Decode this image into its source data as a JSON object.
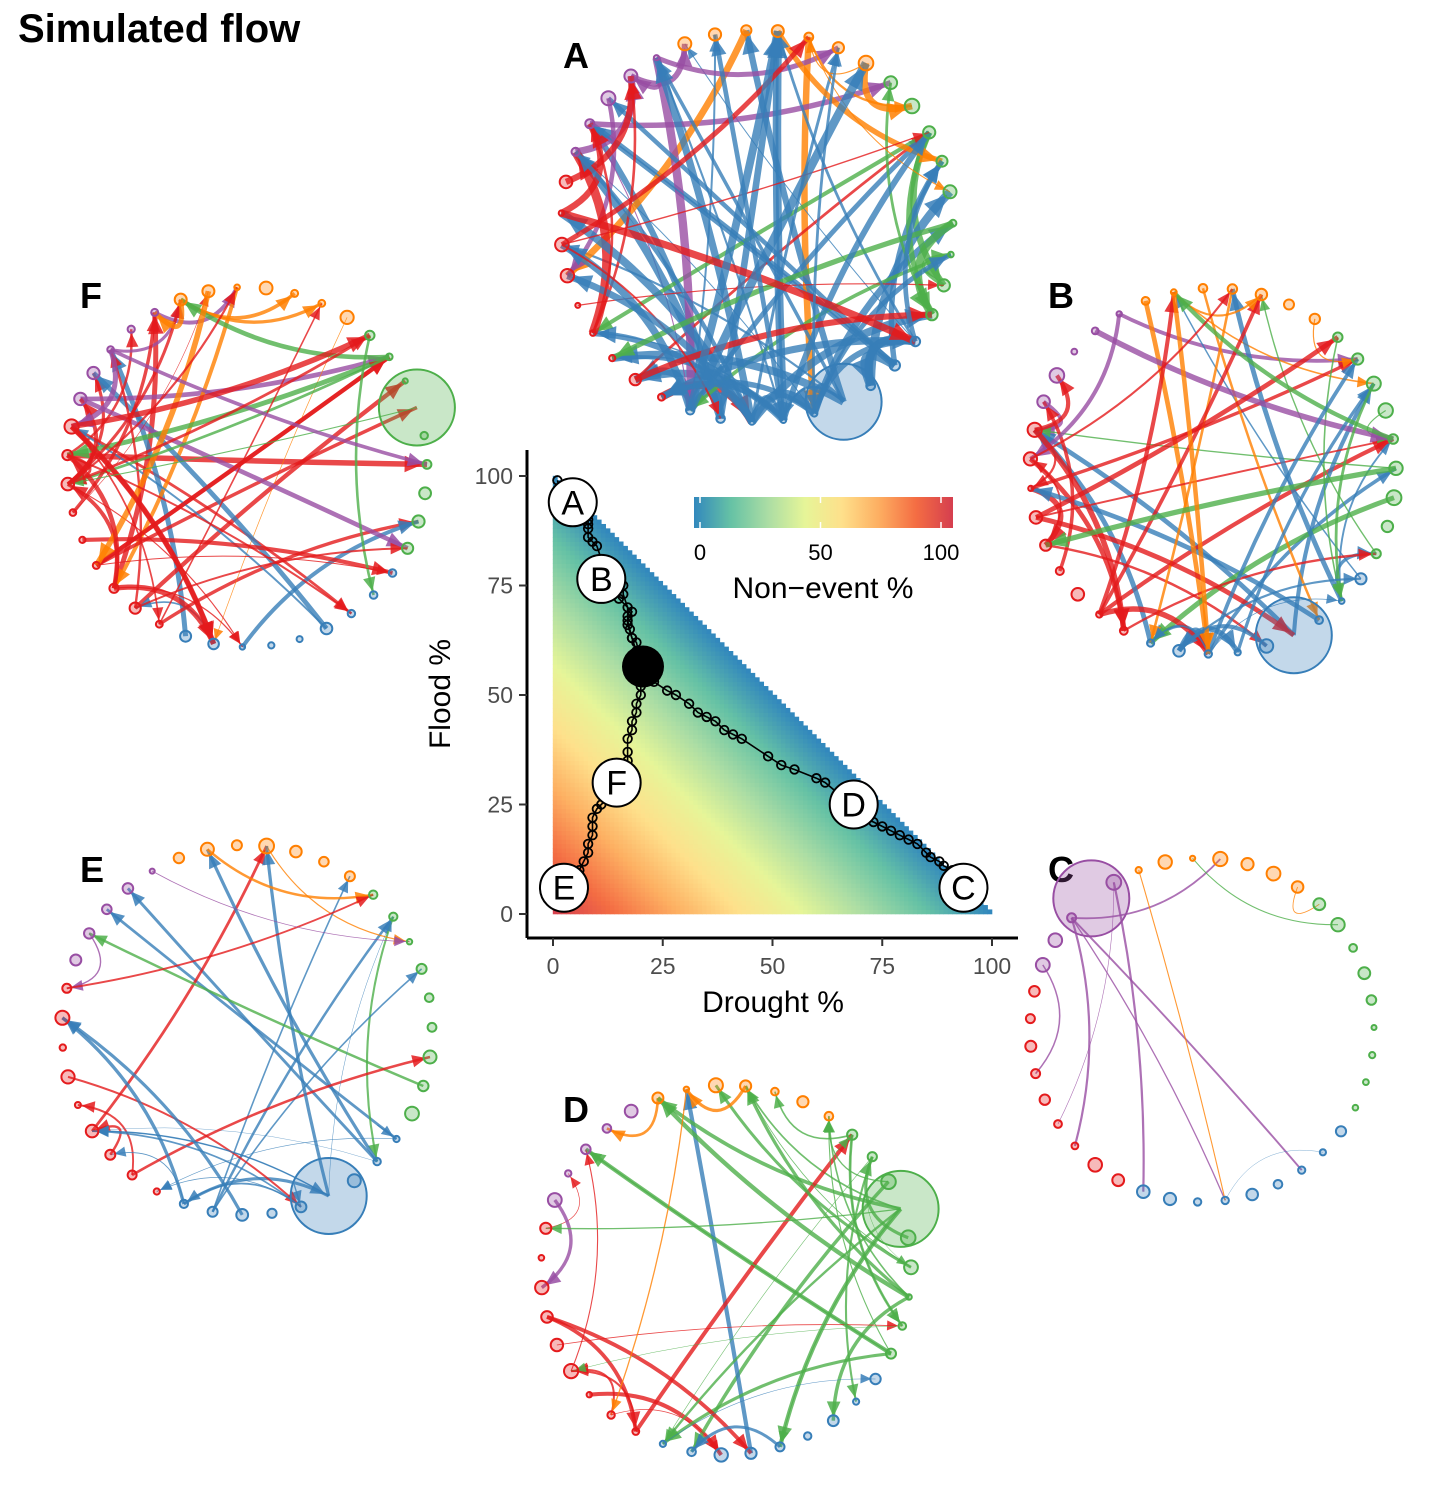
{
  "title": "Simulated flow",
  "colors": {
    "blue": "#377eb8",
    "green": "#4daf4a",
    "red": "#e41a1c",
    "orange": "#ff7f00",
    "purple": "#984ea3"
  },
  "networks": [
    {
      "id": "A",
      "label": "A",
      "node_counts": {
        "orange": 7,
        "green": 9,
        "blue": 9,
        "red": 9,
        "purple": 5
      },
      "edge_scale": 1.6,
      "dominant": "blue",
      "big_node": "blue"
    },
    {
      "id": "B",
      "label": "B",
      "node_counts": {
        "orange": 7,
        "green": 9,
        "blue": 9,
        "red": 9,
        "purple": 5
      },
      "edge_scale": 1.0,
      "dominant": "mixed",
      "big_node": "blue"
    },
    {
      "id": "C",
      "label": "C",
      "node_counts": {
        "orange": 7,
        "green": 9,
        "blue": 9,
        "red": 9,
        "purple": 5
      },
      "edge_scale": 0.2,
      "dominant": "purple",
      "big_node": "purple"
    },
    {
      "id": "D",
      "label": "D",
      "node_counts": {
        "orange": 7,
        "green": 9,
        "blue": 9,
        "red": 9,
        "purple": 5
      },
      "edge_scale": 0.8,
      "dominant": "green",
      "big_node": "green"
    },
    {
      "id": "E",
      "label": "E",
      "node_counts": {
        "orange": 7,
        "green": 9,
        "blue": 9,
        "red": 9,
        "purple": 5
      },
      "edge_scale": 0.6,
      "dominant": "blue",
      "big_node": "blue"
    },
    {
      "id": "F",
      "label": "F",
      "node_counts": {
        "orange": 7,
        "green": 9,
        "blue": 9,
        "red": 9,
        "purple": 5
      },
      "edge_scale": 1.0,
      "dominant": "red",
      "big_node": "green"
    }
  ],
  "chart_data": {
    "type": "scatter",
    "xlabel": "Drought %",
    "ylabel": "Flood %",
    "xlim": [
      0,
      100
    ],
    "ylim": [
      0,
      100
    ],
    "xticks": [
      0,
      25,
      50,
      75,
      100
    ],
    "yticks": [
      0,
      25,
      50,
      75,
      100
    ],
    "heatmap": {
      "fill_variable": "Non−event %",
      "domain": "Drought % + Flood % ≤ 100",
      "scale": "100 − Drought % − Flood %",
      "colorbar_ticks": [
        0,
        50,
        100
      ],
      "colorbar_label": "Non−event %",
      "palette": [
        "#3288bd",
        "#66c2a5",
        "#abdda4",
        "#e6f598",
        "#fee08b",
        "#fdae61",
        "#f46d43",
        "#d53e4f"
      ]
    },
    "center_point": {
      "x": 20.5,
      "y": 56.5
    },
    "paths": [
      {
        "from": "center",
        "to": "A",
        "points": [
          [
            20.5,
            56.5
          ],
          [
            19.5,
            60
          ],
          [
            19,
            62
          ],
          [
            18,
            63
          ],
          [
            17.5,
            65
          ],
          [
            17,
            67
          ],
          [
            18,
            69
          ],
          [
            15,
            72
          ],
          [
            14,
            75
          ],
          [
            12,
            78
          ],
          [
            10,
            84
          ],
          [
            9,
            85
          ],
          [
            8,
            86
          ],
          [
            8,
            88
          ],
          [
            8,
            89
          ],
          [
            8,
            90
          ],
          [
            6,
            92
          ],
          [
            4,
            94
          ],
          [
            2,
            96
          ],
          [
            1,
            99
          ]
        ]
      },
      {
        "from": "center",
        "to": "B",
        "points": [
          [
            20.5,
            56.5
          ],
          [
            19,
            60
          ],
          [
            18,
            63
          ],
          [
            17,
            66
          ],
          [
            17,
            68
          ],
          [
            17,
            70
          ],
          [
            16,
            73
          ],
          [
            16,
            75
          ],
          [
            15,
            77
          ]
        ]
      },
      {
        "from": "center",
        "to": "C",
        "points": [
          [
            20.5,
            56.5
          ],
          [
            23,
            53
          ],
          [
            26,
            51
          ],
          [
            28,
            50
          ],
          [
            31,
            48
          ],
          [
            33,
            46
          ],
          [
            35,
            45
          ],
          [
            37,
            44
          ],
          [
            39,
            42
          ],
          [
            41,
            41
          ],
          [
            43,
            40
          ],
          [
            49,
            36
          ],
          [
            52,
            34
          ],
          [
            55,
            33
          ],
          [
            60,
            31
          ],
          [
            62,
            30
          ],
          [
            68,
            25
          ],
          [
            70,
            22
          ],
          [
            73,
            21
          ],
          [
            75,
            20
          ],
          [
            77,
            19
          ],
          [
            79,
            18
          ],
          [
            81,
            17
          ],
          [
            83,
            16
          ],
          [
            85,
            14
          ],
          [
            86,
            13
          ],
          [
            88,
            12
          ],
          [
            89,
            11
          ],
          [
            91,
            10
          ],
          [
            93,
            9
          ],
          [
            95,
            7
          ],
          [
            96,
            6
          ],
          [
            97,
            5
          ]
        ]
      },
      {
        "from": "center",
        "to": "F",
        "points": [
          [
            20.5,
            56.5
          ],
          [
            20,
            54
          ],
          [
            20,
            52
          ],
          [
            20,
            50
          ],
          [
            19,
            48
          ],
          [
            19,
            46
          ],
          [
            18,
            44
          ],
          [
            18,
            42
          ],
          [
            17,
            40
          ],
          [
            17,
            37
          ],
          [
            17,
            35
          ],
          [
            16,
            33
          ],
          [
            14,
            29
          ],
          [
            13,
            27
          ],
          [
            11,
            25
          ],
          [
            10,
            24
          ],
          [
            9,
            22
          ],
          [
            9,
            20
          ],
          [
            9,
            18
          ],
          [
            8,
            16
          ],
          [
            8,
            14
          ],
          [
            7,
            12
          ],
          [
            6,
            10
          ],
          [
            5,
            8
          ],
          [
            3,
            6
          ]
        ]
      }
    ],
    "labeled_points": [
      {
        "label": "A",
        "x": 4.5,
        "y": 94
      },
      {
        "label": "B",
        "x": 11,
        "y": 76.5
      },
      {
        "label": "C",
        "x": 93.5,
        "y": 6
      },
      {
        "label": "D",
        "x": 68.5,
        "y": 25
      },
      {
        "label": "E",
        "x": 2.5,
        "y": 6
      },
      {
        "label": "F",
        "x": 14.5,
        "y": 30
      }
    ],
    "grid": false
  }
}
